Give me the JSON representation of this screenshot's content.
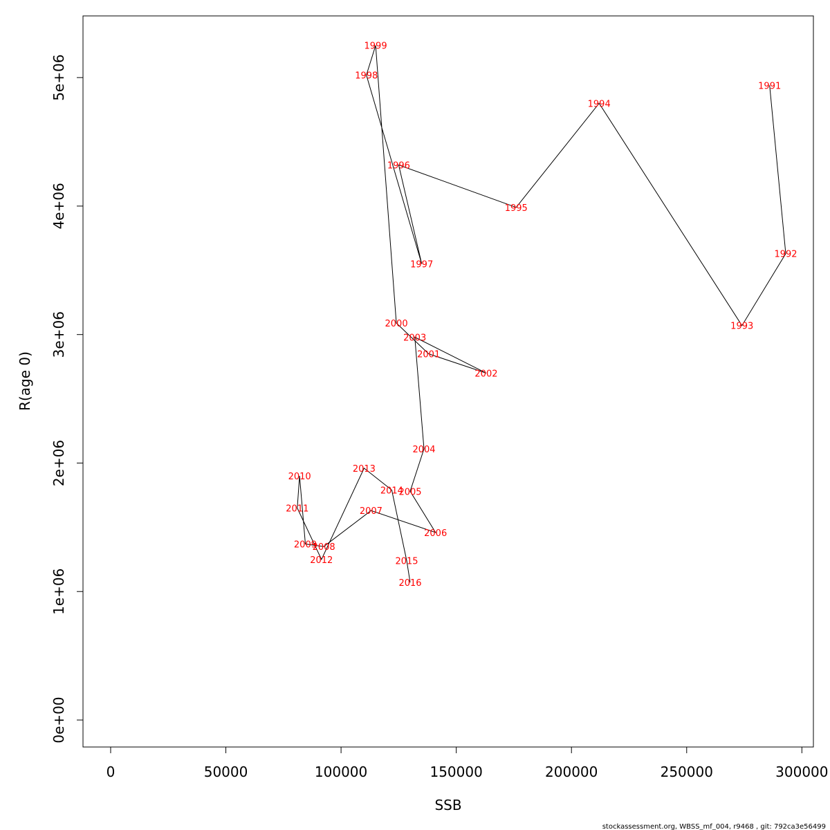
{
  "chart_data": {
    "type": "line",
    "xlabel": "SSB",
    "ylabel": "R(age 0)",
    "xlim": [
      -12000,
      305000
    ],
    "ylim": [
      -210000,
      5480000
    ],
    "xticks": [
      0,
      50000,
      100000,
      150000,
      200000,
      250000,
      300000
    ],
    "xtick_labels": [
      "0",
      "50000",
      "100000",
      "150000",
      "200000",
      "250000",
      "300000"
    ],
    "yticks": [
      0,
      1000000,
      2000000,
      3000000,
      4000000,
      5000000
    ],
    "ytick_labels": [
      "0e+00",
      "1e+06",
      "2e+06",
      "3e+06",
      "4e+06",
      "5e+06"
    ],
    "grid": false,
    "line_color": "#000000",
    "label_color": "#ff0000",
    "points": [
      {
        "label": "1991",
        "x": 286000,
        "y": 4940000
      },
      {
        "label": "1992",
        "x": 293000,
        "y": 3630000
      },
      {
        "label": "1993",
        "x": 274000,
        "y": 3070000
      },
      {
        "label": "1994",
        "x": 212000,
        "y": 4800000
      },
      {
        "label": "1995",
        "x": 176000,
        "y": 3990000
      },
      {
        "label": "1996",
        "x": 125000,
        "y": 4320000
      },
      {
        "label": "1997",
        "x": 135000,
        "y": 3550000
      },
      {
        "label": "1998",
        "x": 111000,
        "y": 5020000
      },
      {
        "label": "1999",
        "x": 115000,
        "y": 5250000
      },
      {
        "label": "2000",
        "x": 124000,
        "y": 3090000
      },
      {
        "label": "2001",
        "x": 138000,
        "y": 2850000
      },
      {
        "label": "2002",
        "x": 163000,
        "y": 2700000
      },
      {
        "label": "2003",
        "x": 132000,
        "y": 2980000
      },
      {
        "label": "2004",
        "x": 136000,
        "y": 2110000
      },
      {
        "label": "2005",
        "x": 130000,
        "y": 1780000
      },
      {
        "label": "2006",
        "x": 141000,
        "y": 1460000
      },
      {
        "label": "2007",
        "x": 113000,
        "y": 1630000
      },
      {
        "label": "2008",
        "x": 92500,
        "y": 1350000
      },
      {
        "label": "2009",
        "x": 84500,
        "y": 1370000
      },
      {
        "label": "2010",
        "x": 82000,
        "y": 1900000
      },
      {
        "label": "2011",
        "x": 81000,
        "y": 1650000
      },
      {
        "label": "2012",
        "x": 91500,
        "y": 1250000
      },
      {
        "label": "2013",
        "x": 110000,
        "y": 1960000
      },
      {
        "label": "2014",
        "x": 122000,
        "y": 1790000
      },
      {
        "label": "2015",
        "x": 128500,
        "y": 1240000
      },
      {
        "label": "2016",
        "x": 130000,
        "y": 1070000
      }
    ]
  },
  "footer": {
    "text": "stockassessment.org, WBSS_mf_004, r9468 , git: 792ca3e56499"
  }
}
